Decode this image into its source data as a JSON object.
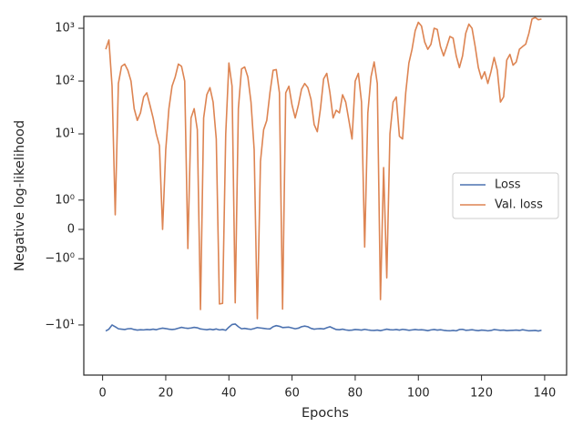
{
  "chart_data": {
    "type": "line",
    "xlabel": "Epochs",
    "ylabel": "Negative log-likelihood",
    "x": [
      1,
      2,
      3,
      4,
      5,
      6,
      7,
      8,
      9,
      10,
      11,
      12,
      13,
      14,
      15,
      16,
      17,
      18,
      19,
      20,
      21,
      22,
      23,
      24,
      25,
      26,
      27,
      28,
      29,
      30,
      31,
      32,
      33,
      34,
      35,
      36,
      37,
      38,
      39,
      40,
      41,
      42,
      43,
      44,
      45,
      46,
      47,
      48,
      49,
      50,
      51,
      52,
      53,
      54,
      55,
      56,
      57,
      58,
      59,
      60,
      61,
      62,
      63,
      64,
      65,
      66,
      67,
      68,
      69,
      70,
      71,
      72,
      73,
      74,
      75,
      76,
      77,
      78,
      79,
      80,
      81,
      82,
      83,
      84,
      85,
      86,
      87,
      88,
      89,
      90,
      91,
      92,
      93,
      94,
      95,
      96,
      97,
      98,
      99,
      100,
      101,
      102,
      103,
      104,
      105,
      106,
      107,
      108,
      109,
      110,
      111,
      112,
      113,
      114,
      115,
      116,
      117,
      118,
      119,
      120,
      121,
      122,
      123,
      124,
      125,
      126,
      127,
      128,
      129,
      130,
      131,
      132,
      133,
      134,
      135,
      136,
      137,
      138,
      139
    ],
    "series": [
      {
        "name": "Loss",
        "color": "#4c72b0",
        "values": [
          -13,
          -12,
          -10,
          -10.8,
          -11.8,
          -12,
          -12.2,
          -11.8,
          -11.7,
          -12.2,
          -12.5,
          -12.3,
          -12.4,
          -12.2,
          -12.3,
          -12,
          -12.3,
          -11.8,
          -11.5,
          -11.7,
          -12,
          -12.2,
          -12,
          -11.5,
          -11.1,
          -11.4,
          -11.6,
          -11.4,
          -11.1,
          -11.3,
          -11.9,
          -12.1,
          -12.3,
          -12,
          -12.3,
          -11.9,
          -12.4,
          -12.2,
          -12.6,
          -11,
          -9.8,
          -9.6,
          -10.8,
          -11.8,
          -11.6,
          -11.9,
          -12.1,
          -11.7,
          -11.2,
          -11.4,
          -11.6,
          -11.8,
          -11.9,
          -10.8,
          -10.3,
          -10.6,
          -11.2,
          -11.1,
          -11,
          -11.4,
          -11.8,
          -11.5,
          -10.8,
          -10.5,
          -10.8,
          -11.6,
          -12,
          -11.8,
          -11.7,
          -11.9,
          -11.3,
          -10.8,
          -11.5,
          -12.2,
          -12.3,
          -12,
          -12.4,
          -12.6,
          -12.5,
          -12.2,
          -12.3,
          -12.5,
          -12.1,
          -12.4,
          -12.6,
          -12.7,
          -12.5,
          -12.8,
          -12.4,
          -12,
          -12.3,
          -12.4,
          -12.2,
          -12.5,
          -12.1,
          -12.3,
          -12.6,
          -12.4,
          -12.2,
          -12.4,
          -12.3,
          -12.5,
          -12.8,
          -12.4,
          -12.2,
          -12.5,
          -12.3,
          -12.6,
          -12.8,
          -12.9,
          -12.7,
          -12.9,
          -12.2,
          -12.1,
          -12.6,
          -12.5,
          -12.3,
          -12.6,
          -12.8,
          -12.5,
          -12.6,
          -12.9,
          -12.7,
          -12.2,
          -12.4,
          -12.6,
          -12.5,
          -12.8,
          -12.7,
          -12.6,
          -12.5,
          -12.7,
          -12.3,
          -12.6,
          -12.9,
          -12.8,
          -12.7,
          -13,
          -12.6
        ]
      },
      {
        "name": "Val. loss",
        "color": "#dd8452",
        "values": [
          400,
          600,
          80,
          0.5,
          90,
          190,
          210,
          160,
          100,
          30,
          18,
          25,
          50,
          60,
          35,
          20,
          10,
          6,
          0,
          5,
          30,
          80,
          120,
          210,
          190,
          100,
          -0.65,
          20,
          30,
          12,
          -5.1,
          20,
          55,
          75,
          40,
          8,
          -4,
          -3.9,
          10,
          220,
          80,
          -3.8,
          30,
          170,
          185,
          120,
          40,
          5,
          -7.6,
          3,
          12,
          18,
          60,
          160,
          165,
          60,
          -5,
          60,
          80,
          35,
          20,
          35,
          70,
          90,
          75,
          45,
          15,
          11,
          30,
          110,
          140,
          60,
          20,
          28,
          25,
          55,
          40,
          18,
          8,
          100,
          140,
          40,
          -0.6,
          25,
          120,
          230,
          90,
          -3.3,
          2.3,
          -1.65,
          10,
          40,
          50,
          9,
          8,
          60,
          220,
          400,
          900,
          1300,
          1100,
          550,
          400,
          500,
          1000,
          950,
          450,
          300,
          450,
          700,
          650,
          300,
          180,
          300,
          800,
          1200,
          1000,
          450,
          180,
          110,
          150,
          90,
          150,
          280,
          160,
          40,
          50,
          250,
          320,
          200,
          230,
          400,
          450,
          500,
          800,
          1500,
          1600,
          1450,
          1500
        ]
      }
    ],
    "xlim": [
      -5.95,
      146.95
    ],
    "xticks": [
      0,
      20,
      40,
      60,
      80,
      100,
      120,
      140
    ],
    "yscale": "symlog",
    "linthresh": 2,
    "linscale": 1,
    "ylim": [
      -89,
      1680
    ],
    "yticks": [
      {
        "value": -10,
        "label": "−10¹"
      },
      {
        "value": -1,
        "label": "−10⁰"
      },
      0,
      {
        "value": 1,
        "label": "10⁰"
      },
      {
        "value": 10,
        "label": "10¹"
      },
      {
        "value": 100,
        "label": "10²"
      },
      {
        "value": 1000,
        "label": "10³"
      }
    ],
    "legend": "center right",
    "grid": false
  }
}
